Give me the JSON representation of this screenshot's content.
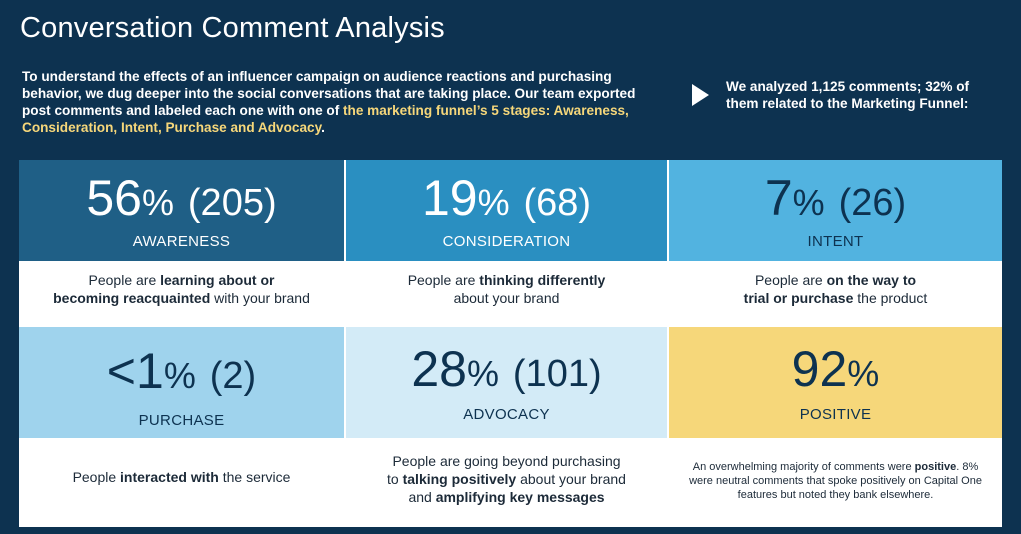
{
  "title": "Conversation Comment Analysis",
  "intro": {
    "text_plain": "To understand the effects of an influencer campaign on audience reactions and purchasing behavior, we dug deeper into the social conversations that are taking place. Our team exported post comments and labeled each one with one of ",
    "text_highlight": "the marketing funnel’s 5 stages: Awareness, Consideration, Intent, Purchase and Advocacy",
    "text_end": "."
  },
  "side_note": "We analyzed 1,125 comments; 32% of them related to the Marketing Funnel:",
  "colors": {
    "background": "#0d3250",
    "awareness": "#1f5f86",
    "consideration": "#2a8fc1",
    "intent": "#52b3e0",
    "purchase": "#9fd3ed",
    "advocacy": "#d3ebf7",
    "positive": "#f6d77a",
    "highlight": "#f6d77a"
  },
  "cards": {
    "awareness": {
      "num": "56",
      "pct": "%",
      "count": "(205)",
      "label": "AWARENESS",
      "d1": "People are ",
      "d1b": "learning about or",
      "d2b": "becoming reacquainted",
      "d2": " with your brand"
    },
    "consideration": {
      "num": "19",
      "pct": "%",
      "count": "(68)",
      "label": "CONSIDERATION",
      "d1": "People are ",
      "d1b": "thinking differently",
      "d2": "about your brand"
    },
    "intent": {
      "num": "7",
      "pct": "%",
      "count": "(26)",
      "label": "INTENT",
      "d1": "People are ",
      "d1b": "on the way to",
      "d2b": "trial or purchase",
      "d2": " the product"
    },
    "purchase": {
      "num": "<1",
      "pct": "%",
      "count": "(2)",
      "label": "PURCHASE",
      "d1": "People ",
      "d1b": "interacted with",
      "d1e": " the service"
    },
    "advocacy": {
      "num": "28",
      "pct": "%",
      "count": "(101)",
      "label": "ADVOCACY",
      "d1": "People are going beyond purchasing",
      "d2": "to ",
      "d2b": "talking positively",
      "d2e": " about your brand",
      "d3": "and ",
      "d3b": "amplifying key messages"
    },
    "positive": {
      "num": "92",
      "pct": "%",
      "label": "POSITIVE",
      "d1": "An overwhelming majority of comments were ",
      "d1b": "positive",
      "d1e": ". 8%",
      "d2": "were neutral comments that spoke positively on Capital One",
      "d3": "features but noted they bank elsewhere."
    }
  }
}
